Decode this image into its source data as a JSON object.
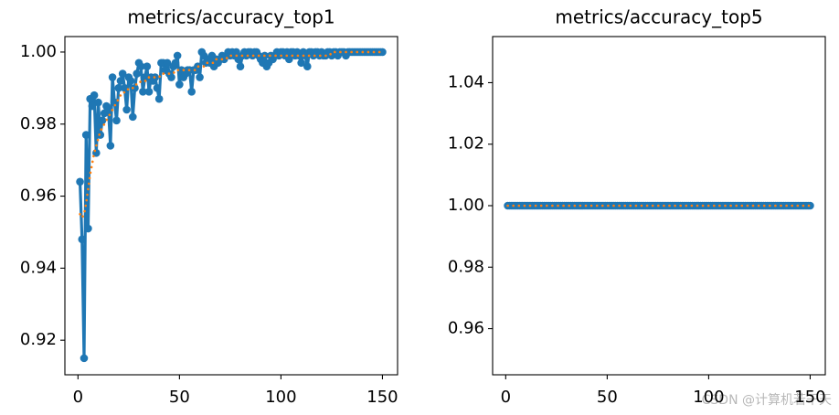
{
  "watermark": "CSDN @计算机若干天",
  "chart_data": [
    {
      "type": "line",
      "title": "metrics/accuracy_top1",
      "x": [
        1,
        2,
        3,
        4,
        5,
        6,
        7,
        8,
        9,
        10,
        11,
        12,
        13,
        14,
        15,
        16,
        17,
        18,
        19,
        20,
        21,
        22,
        23,
        24,
        25,
        26,
        27,
        28,
        29,
        30,
        31,
        32,
        33,
        34,
        35,
        36,
        37,
        38,
        39,
        40,
        41,
        42,
        43,
        44,
        45,
        46,
        47,
        48,
        49,
        50,
        51,
        52,
        53,
        54,
        55,
        56,
        57,
        58,
        59,
        60,
        61,
        62,
        63,
        64,
        65,
        66,
        67,
        68,
        69,
        70,
        71,
        72,
        73,
        74,
        75,
        76,
        77,
        78,
        79,
        80,
        81,
        82,
        83,
        84,
        85,
        86,
        87,
        88,
        89,
        90,
        91,
        92,
        93,
        94,
        95,
        96,
        97,
        98,
        99,
        100,
        101,
        102,
        103,
        104,
        105,
        106,
        107,
        108,
        109,
        110,
        111,
        112,
        113,
        114,
        115,
        116,
        117,
        118,
        119,
        120,
        121,
        122,
        123,
        124,
        125,
        126,
        127,
        128,
        129,
        130,
        131,
        132,
        133,
        134,
        135,
        136,
        137,
        138,
        139,
        140,
        141,
        142,
        143,
        144,
        145,
        146,
        147,
        148,
        149,
        150
      ],
      "series": [
        {
          "color": "#1f77b4",
          "linestyle": "solid",
          "marker": true,
          "values": [
            0.964,
            0.948,
            0.915,
            0.977,
            0.951,
            0.987,
            0.985,
            0.988,
            0.972,
            0.986,
            0.977,
            0.981,
            0.983,
            0.985,
            0.984,
            0.974,
            0.993,
            0.986,
            0.981,
            0.99,
            0.992,
            0.994,
            0.99,
            0.984,
            0.993,
            0.992,
            0.982,
            0.99,
            0.994,
            0.997,
            0.996,
            0.989,
            0.993,
            0.996,
            0.989,
            0.993,
            0.992,
            0.993,
            0.99,
            0.987,
            0.997,
            0.997,
            0.995,
            0.997,
            0.994,
            0.993,
            0.996,
            0.997,
            0.999,
            0.991,
            0.995,
            0.993,
            0.994,
            0.995,
            0.995,
            0.989,
            0.995,
            0.995,
            0.996,
            0.993,
            1,
            0.999,
            0.997,
            0.998,
            0.997,
            0.999,
            0.996,
            0.998,
            0.997,
            0.998,
            0.999,
            0.998,
            0.999,
            1,
            0.999,
            1,
            0.999,
            1,
            0.998,
            0.996,
            0.999,
            1,
            0.999,
            1,
            1,
            0.999,
            1,
            1,
            0.999,
            0.998,
            0.997,
            0.999,
            0.996,
            0.997,
            0.999,
            0.998,
            0.999,
            1,
            0.999,
            1,
            1,
            0.999,
            1,
            0.998,
            1,
            1,
            0.999,
            1,
            0.999,
            0.997,
            1,
            0.999,
            0.996,
            1,
            1,
            0.999,
            1,
            1,
            0.999,
            1,
            0.999,
            0.999,
            1,
            1,
            0.999,
            1,
            1,
            0.999,
            1,
            1,
            1,
            0.999,
            1,
            1,
            1,
            1,
            1,
            1,
            1,
            1,
            1,
            1,
            1,
            1,
            1,
            1,
            1,
            1,
            1,
            1
          ]
        },
        {
          "color": "#ff7f0e",
          "linestyle": "dotted",
          "marker": false,
          "values": [
            0.955,
            0.954,
            0.955,
            0.958,
            0.962,
            0.966,
            0.969,
            0.972,
            0.974,
            0.976,
            0.978,
            0.979,
            0.98,
            0.981,
            0.982,
            0.983,
            0.984,
            0.985,
            0.986,
            0.987,
            0.988,
            0.988,
            0.989,
            0.989,
            0.99,
            0.99,
            0.99,
            0.991,
            0.991,
            0.991,
            0.992,
            0.992,
            0.992,
            0.992,
            0.993,
            0.993,
            0.993,
            0.993,
            0.993,
            0.993,
            0.994,
            0.994,
            0.994,
            0.994,
            0.994,
            0.994,
            0.994,
            0.995,
            0.995,
            0.995,
            0.995,
            0.995,
            0.995,
            0.995,
            0.995,
            0.995,
            0.995,
            0.995,
            0.996,
            0.996,
            0.996,
            0.996,
            0.997,
            0.997,
            0.997,
            0.997,
            0.997,
            0.998,
            0.998,
            0.998,
            0.998,
            0.998,
            0.998,
            0.999,
            0.999,
            0.999,
            0.999,
            0.999,
            0.999,
            0.999,
            0.999,
            0.999,
            0.999,
            0.999,
            0.999,
            0.999,
            0.999,
            0.999,
            0.999,
            0.999,
            0.999,
            0.999,
            0.999,
            0.999,
            0.999,
            0.999,
            0.999,
            0.999,
            0.999,
            0.999,
            0.999,
            0.999,
            0.999,
            0.999,
            0.999,
            0.999,
            0.999,
            0.999,
            0.999,
            0.999,
            0.999,
            0.999,
            0.999,
            0.999,
            0.999,
            0.999,
            0.999,
            0.999,
            0.999,
            0.999,
            0.999,
            0.999,
            0.999,
            0.999,
            1,
            1,
            1,
            1,
            1,
            1,
            1,
            1,
            1,
            1,
            1,
            1,
            1,
            1,
            1,
            1,
            1,
            1,
            1,
            1,
            1,
            1,
            1,
            1,
            1,
            1
          ]
        }
      ],
      "xlim": [
        -6.45,
        157.45
      ],
      "xticks": [
        0,
        50,
        100,
        150
      ],
      "ylim": [
        0.9104,
        1.0043
      ],
      "yticks": [
        0.92,
        0.94,
        0.96,
        0.98,
        {
          "value": 1,
          "label": "1.00"
        }
      ]
    },
    {
      "type": "line",
      "title": "metrics/accuracy_top5",
      "x": [
        1,
        2,
        3,
        4,
        5,
        6,
        7,
        8,
        9,
        10,
        11,
        12,
        13,
        14,
        15,
        16,
        17,
        18,
        19,
        20,
        21,
        22,
        23,
        24,
        25,
        26,
        27,
        28,
        29,
        30,
        31,
        32,
        33,
        34,
        35,
        36,
        37,
        38,
        39,
        40,
        41,
        42,
        43,
        44,
        45,
        46,
        47,
        48,
        49,
        50,
        51,
        52,
        53,
        54,
        55,
        56,
        57,
        58,
        59,
        60,
        61,
        62,
        63,
        64,
        65,
        66,
        67,
        68,
        69,
        70,
        71,
        72,
        73,
        74,
        75,
        76,
        77,
        78,
        79,
        80,
        81,
        82,
        83,
        84,
        85,
        86,
        87,
        88,
        89,
        90,
        91,
        92,
        93,
        94,
        95,
        96,
        97,
        98,
        99,
        100,
        101,
        102,
        103,
        104,
        105,
        106,
        107,
        108,
        109,
        110,
        111,
        112,
        113,
        114,
        115,
        116,
        117,
        118,
        119,
        120,
        121,
        122,
        123,
        124,
        125,
        126,
        127,
        128,
        129,
        130,
        131,
        132,
        133,
        134,
        135,
        136,
        137,
        138,
        139,
        140,
        141,
        142,
        143,
        144,
        145,
        146,
        147,
        148,
        149,
        150
      ],
      "series": [
        {
          "color": "#1f77b4",
          "linestyle": "solid",
          "marker": true,
          "values": [
            1,
            1,
            1,
            1,
            1,
            1,
            1,
            1,
            1,
            1,
            1,
            1,
            1,
            1,
            1,
            1,
            1,
            1,
            1,
            1,
            1,
            1,
            1,
            1,
            1,
            1,
            1,
            1,
            1,
            1,
            1,
            1,
            1,
            1,
            1,
            1,
            1,
            1,
            1,
            1,
            1,
            1,
            1,
            1,
            1,
            1,
            1,
            1,
            1,
            1,
            1,
            1,
            1,
            1,
            1,
            1,
            1,
            1,
            1,
            1,
            1,
            1,
            1,
            1,
            1,
            1,
            1,
            1,
            1,
            1,
            1,
            1,
            1,
            1,
            1,
            1,
            1,
            1,
            1,
            1,
            1,
            1,
            1,
            1,
            1,
            1,
            1,
            1,
            1,
            1,
            1,
            1,
            1,
            1,
            1,
            1,
            1,
            1,
            1,
            1,
            1,
            1,
            1,
            1,
            1,
            1,
            1,
            1,
            1,
            1,
            1,
            1,
            1,
            1,
            1,
            1,
            1,
            1,
            1,
            1,
            1,
            1,
            1,
            1,
            1,
            1,
            1,
            1,
            1,
            1,
            1,
            1,
            1,
            1,
            1,
            1,
            1,
            1,
            1,
            1,
            1,
            1,
            1,
            1,
            1,
            1,
            1,
            1,
            1,
            1
          ]
        },
        {
          "color": "#ff7f0e",
          "linestyle": "dotted",
          "marker": false,
          "values": [
            1,
            1,
            1,
            1,
            1,
            1,
            1,
            1,
            1,
            1,
            1,
            1,
            1,
            1,
            1,
            1,
            1,
            1,
            1,
            1,
            1,
            1,
            1,
            1,
            1,
            1,
            1,
            1,
            1,
            1,
            1,
            1,
            1,
            1,
            1,
            1,
            1,
            1,
            1,
            1,
            1,
            1,
            1,
            1,
            1,
            1,
            1,
            1,
            1,
            1,
            1,
            1,
            1,
            1,
            1,
            1,
            1,
            1,
            1,
            1,
            1,
            1,
            1,
            1,
            1,
            1,
            1,
            1,
            1,
            1,
            1,
            1,
            1,
            1,
            1,
            1,
            1,
            1,
            1,
            1,
            1,
            1,
            1,
            1,
            1,
            1,
            1,
            1,
            1,
            1,
            1,
            1,
            1,
            1,
            1,
            1,
            1,
            1,
            1,
            1,
            1,
            1,
            1,
            1,
            1,
            1,
            1,
            1,
            1,
            1,
            1,
            1,
            1,
            1,
            1,
            1,
            1,
            1,
            1,
            1,
            1,
            1,
            1,
            1,
            1,
            1,
            1,
            1,
            1,
            1,
            1,
            1,
            1,
            1,
            1,
            1,
            1,
            1,
            1,
            1,
            1,
            1,
            1,
            1,
            1,
            1,
            1,
            1,
            1,
            1
          ]
        }
      ],
      "xlim": [
        -6.45,
        157.45
      ],
      "xticks": [
        0,
        50,
        100,
        150
      ],
      "ylim": [
        0.945,
        1.055
      ],
      "yticks": [
        0.96,
        0.98,
        {
          "value": 1,
          "label": "1.00"
        },
        1.02,
        1.04
      ]
    }
  ]
}
